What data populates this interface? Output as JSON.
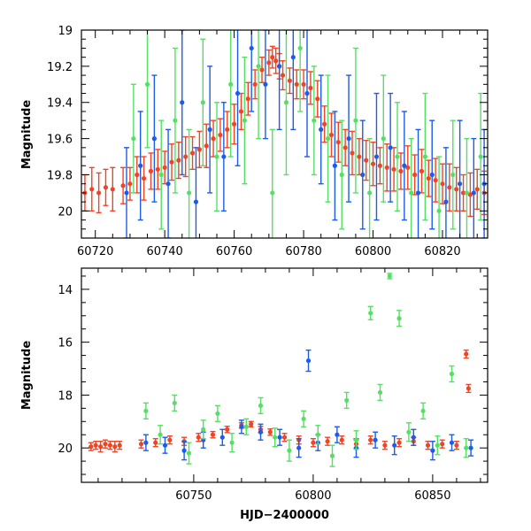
{
  "colors": {
    "red": "#f04525",
    "blue": "#1d5ce8",
    "green": "#55e065",
    "black": "#000000"
  },
  "chart_data": [
    {
      "type": "scatter",
      "title": "",
      "xlabel": "",
      "ylabel": "Magnitude",
      "xlim": [
        60716,
        60833
      ],
      "ylim": [
        20.15,
        19.0
      ],
      "y_inverted": true,
      "xticks": [
        60720,
        60740,
        60760,
        60780,
        60800,
        60820
      ],
      "yticks": [
        19,
        19.2,
        19.4,
        19.6,
        19.8,
        20
      ],
      "ytick_labels": [
        "19",
        "19.2",
        "19.4",
        "19.6",
        "19.8",
        "20"
      ],
      "grid": false,
      "error_bars": true,
      "series": [
        {
          "color": "#f04525",
          "x": [
            60717,
            60719,
            60721,
            60723,
            60725,
            60728,
            60730,
            60732,
            60734,
            60736,
            60738,
            60740,
            60742,
            60744,
            60746,
            60748,
            60750,
            60752,
            60754,
            60756,
            60758,
            60760,
            60762,
            60764,
            60766,
            60768,
            60770,
            60771,
            60772,
            60773,
            60774,
            60776,
            60778,
            60780,
            60782,
            60784,
            60786,
            60788,
            60790,
            60792,
            60794,
            60796,
            60798,
            60800,
            60802,
            60804,
            60806,
            60808,
            60810,
            60812,
            60814,
            60816,
            60818,
            60820,
            60822,
            60824,
            60826,
            60828,
            60830,
            60832
          ],
          "y": [
            19.9,
            19.88,
            19.9,
            19.87,
            19.88,
            19.86,
            19.85,
            19.8,
            19.82,
            19.78,
            19.77,
            19.76,
            19.73,
            19.72,
            19.7,
            19.68,
            19.66,
            19.64,
            19.6,
            19.58,
            19.55,
            19.52,
            19.45,
            19.38,
            19.3,
            19.22,
            19.18,
            19.15,
            19.17,
            19.2,
            19.25,
            19.28,
            19.3,
            19.3,
            19.32,
            19.38,
            19.52,
            19.58,
            19.62,
            19.65,
            19.68,
            19.7,
            19.72,
            19.74,
            19.75,
            19.76,
            19.77,
            19.78,
            19.76,
            19.8,
            19.78,
            19.82,
            19.83,
            19.85,
            19.87,
            19.88,
            19.9,
            19.91,
            19.88,
            19.9
          ],
          "err": [
            0.1,
            0.12,
            0.11,
            0.1,
            0.12,
            0.1,
            0.09,
            0.1,
            0.12,
            0.1,
            0.11,
            0.09,
            0.1,
            0.1,
            0.11,
            0.09,
            0.1,
            0.12,
            0.1,
            0.09,
            0.1,
            0.11,
            0.1,
            0.09,
            0.08,
            0.07,
            0.07,
            0.06,
            0.07,
            0.07,
            0.08,
            0.07,
            0.08,
            0.08,
            0.09,
            0.1,
            0.1,
            0.12,
            0.11,
            0.1,
            0.12,
            0.1,
            0.11,
            0.12,
            0.1,
            0.13,
            0.12,
            0.1,
            0.12,
            0.11,
            0.12,
            0.1,
            0.12,
            0.11,
            0.13,
            0.12,
            0.1,
            0.12,
            0.11,
            0.12
          ]
        },
        {
          "color": "#1d5ce8",
          "x": [
            60729,
            60733,
            60737,
            60741,
            60745,
            60749,
            60753,
            60757,
            60761,
            60765,
            60769,
            60773,
            60777,
            60781,
            60785,
            60789,
            60793,
            60797,
            60801,
            60805,
            60809,
            60813,
            60817,
            60821,
            60825,
            60829,
            60832
          ],
          "y": [
            19.9,
            19.75,
            19.6,
            19.85,
            19.4,
            19.95,
            19.55,
            19.7,
            19.35,
            19.1,
            19.3,
            19.2,
            19.15,
            19.35,
            19.55,
            19.75,
            19.6,
            19.8,
            19.7,
            19.65,
            19.75,
            19.9,
            19.8,
            19.95,
            19.85,
            19.9,
            19.85
          ],
          "err": [
            0.25,
            0.3,
            0.35,
            0.3,
            0.4,
            0.3,
            0.35,
            0.3,
            0.4,
            0.35,
            0.3,
            0.35,
            0.4,
            0.35,
            0.3,
            0.3,
            0.35,
            0.3,
            0.35,
            0.3,
            0.3,
            0.35,
            0.3,
            0.3,
            0.35,
            0.3,
            0.3
          ]
        },
        {
          "color": "#55e065",
          "x": [
            60731,
            60735,
            60739,
            60743,
            60747,
            60751,
            60755,
            60759,
            60763,
            60767,
            60771,
            60775,
            60779,
            60783,
            60787,
            60791,
            60795,
            60799,
            60803,
            60807,
            60811,
            60815,
            60819,
            60823,
            60827,
            60831
          ],
          "y": [
            19.6,
            19.3,
            19.8,
            19.5,
            19.9,
            19.4,
            19.7,
            19.3,
            19.5,
            19.2,
            19.9,
            19.4,
            19.1,
            19.5,
            19.6,
            19.8,
            19.5,
            19.9,
            19.6,
            19.7,
            19.9,
            19.7,
            20.0,
            19.8,
            19.9,
            19.7
          ],
          "err": [
            0.3,
            0.35,
            0.3,
            0.4,
            0.35,
            0.35,
            0.3,
            0.4,
            0.35,
            0.4,
            0.35,
            0.4,
            0.35,
            0.3,
            0.35,
            0.3,
            0.4,
            0.3,
            0.35,
            0.3,
            0.3,
            0.35,
            0.3,
            0.3,
            0.3,
            0.35
          ]
        }
      ]
    },
    {
      "type": "scatter",
      "title": "",
      "xlabel": "HJD−2400000",
      "ylabel": "Magnitude",
      "xlim": [
        60703,
        60873
      ],
      "ylim": [
        21.3,
        13.2
      ],
      "y_inverted": true,
      "xticks": [
        60750,
        60800,
        60850
      ],
      "yticks": [
        14,
        16,
        18,
        20
      ],
      "ytick_labels": [
        "14",
        "16",
        "18",
        "20"
      ],
      "grid": false,
      "error_bars": true,
      "series": [
        {
          "color": "#f04525",
          "x": [
            60707,
            60709,
            60711,
            60713,
            60715,
            60717,
            60719,
            60728,
            60734,
            60740,
            60746,
            60752,
            60758,
            60764,
            60770,
            60774,
            60778,
            60782,
            60788,
            60794,
            60800,
            60806,
            60812,
            60818,
            60824,
            60830,
            60836,
            60842,
            60848,
            60854,
            60860,
            60864,
            60865
          ],
          "y": [
            19.95,
            19.9,
            19.95,
            19.85,
            19.9,
            19.95,
            19.9,
            19.85,
            19.8,
            19.7,
            19.75,
            19.6,
            19.5,
            19.3,
            19.15,
            19.1,
            19.3,
            19.4,
            19.6,
            19.7,
            19.8,
            19.75,
            19.7,
            19.85,
            19.7,
            19.9,
            19.8,
            19.75,
            19.9,
            19.85,
            19.9,
            16.45,
            17.75
          ],
          "err": [
            0.15,
            0.15,
            0.2,
            0.15,
            0.15,
            0.2,
            0.15,
            0.15,
            0.15,
            0.15,
            0.15,
            0.15,
            0.12,
            0.12,
            0.1,
            0.1,
            0.12,
            0.12,
            0.15,
            0.15,
            0.15,
            0.15,
            0.15,
            0.15,
            0.15,
            0.15,
            0.15,
            0.15,
            0.15,
            0.15,
            0.15,
            0.15,
            0.15
          ]
        },
        {
          "color": "#1d5ce8",
          "x": [
            60730,
            60738,
            60746,
            60754,
            60762,
            60770,
            60778,
            60786,
            60794,
            60798,
            60802,
            60810,
            60818,
            60826,
            60834,
            60842,
            60850,
            60858,
            60866
          ],
          "y": [
            19.8,
            19.9,
            20.1,
            19.7,
            19.6,
            19.2,
            19.4,
            19.6,
            20.0,
            16.7,
            19.8,
            19.5,
            20.0,
            19.7,
            19.9,
            19.6,
            20.1,
            19.8,
            20.0
          ],
          "err": [
            0.3,
            0.3,
            0.35,
            0.3,
            0.3,
            0.25,
            0.3,
            0.3,
            0.35,
            0.4,
            0.3,
            0.3,
            0.35,
            0.3,
            0.35,
            0.3,
            0.35,
            0.3,
            0.3
          ]
        },
        {
          "color": "#55e065",
          "x": [
            60730,
            60736,
            60742,
            60748,
            60754,
            60760,
            60766,
            60772,
            60778,
            60784,
            60790,
            60796,
            60802,
            60808,
            60814,
            60818,
            60824,
            60828,
            60832,
            60836,
            60840,
            60846,
            60852,
            60858,
            60864
          ],
          "y": [
            18.6,
            19.5,
            18.3,
            20.2,
            19.3,
            18.7,
            19.8,
            19.2,
            18.4,
            19.6,
            20.1,
            18.9,
            19.5,
            20.3,
            18.2,
            19.7,
            14.9,
            17.9,
            13.5,
            15.1,
            19.4,
            18.6,
            19.9,
            17.2,
            20.0
          ],
          "err": [
            0.3,
            0.35,
            0.3,
            0.4,
            0.35,
            0.3,
            0.35,
            0.3,
            0.3,
            0.35,
            0.4,
            0.3,
            0.35,
            0.4,
            0.3,
            0.35,
            0.25,
            0.3,
            0.1,
            0.3,
            0.35,
            0.3,
            0.35,
            0.3,
            0.35
          ]
        }
      ]
    }
  ]
}
